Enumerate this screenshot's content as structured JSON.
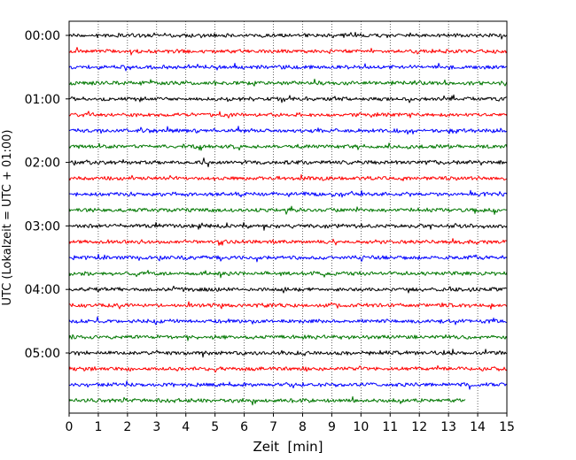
{
  "chart_data": {
    "type": "line",
    "title": "",
    "xlabel": "Zeit  [min]",
    "ylabel": "UTC (Lokalzeit = UTC + 01:00)",
    "xlim": [
      0,
      15
    ],
    "x_ticks": [
      "0",
      "1",
      "2",
      "3",
      "4",
      "5",
      "6",
      "7",
      "8",
      "9",
      "10",
      "11",
      "12",
      "13",
      "14",
      "15"
    ],
    "y_tick_labels": [
      "00:00",
      "01:00",
      "02:00",
      "03:00",
      "04:00",
      "05:00"
    ],
    "trace_interval_min": 15,
    "grid": "vertical dotted",
    "colors_cycle": [
      "#000000",
      "#ff0000",
      "#0000ff",
      "#007700"
    ],
    "series": [
      {
        "start": "00:00",
        "color": "#000000",
        "x_end": 15
      },
      {
        "start": "00:15",
        "color": "#ff0000",
        "x_end": 15
      },
      {
        "start": "00:30",
        "color": "#0000ff",
        "x_end": 15
      },
      {
        "start": "00:45",
        "color": "#007700",
        "x_end": 15
      },
      {
        "start": "01:00",
        "color": "#000000",
        "x_end": 15
      },
      {
        "start": "01:15",
        "color": "#ff0000",
        "x_end": 15
      },
      {
        "start": "01:30",
        "color": "#0000ff",
        "x_end": 15
      },
      {
        "start": "01:45",
        "color": "#007700",
        "x_end": 15
      },
      {
        "start": "02:00",
        "color": "#000000",
        "x_end": 15
      },
      {
        "start": "02:15",
        "color": "#ff0000",
        "x_end": 15
      },
      {
        "start": "02:30",
        "color": "#0000ff",
        "x_end": 15
      },
      {
        "start": "02:45",
        "color": "#007700",
        "x_end": 15
      },
      {
        "start": "03:00",
        "color": "#000000",
        "x_end": 15
      },
      {
        "start": "03:15",
        "color": "#ff0000",
        "x_end": 15
      },
      {
        "start": "03:30",
        "color": "#0000ff",
        "x_end": 15
      },
      {
        "start": "03:45",
        "color": "#007700",
        "x_end": 15
      },
      {
        "start": "04:00",
        "color": "#000000",
        "x_end": 15
      },
      {
        "start": "04:15",
        "color": "#ff0000",
        "x_end": 15
      },
      {
        "start": "04:30",
        "color": "#0000ff",
        "x_end": 15
      },
      {
        "start": "04:45",
        "color": "#007700",
        "x_end": 15
      },
      {
        "start": "05:00",
        "color": "#000000",
        "x_end": 15
      },
      {
        "start": "05:15",
        "color": "#ff0000",
        "x_end": 15
      },
      {
        "start": "05:30",
        "color": "#0000ff",
        "x_end": 15
      },
      {
        "start": "05:45",
        "color": "#007700",
        "x_end": 13.6
      }
    ]
  }
}
